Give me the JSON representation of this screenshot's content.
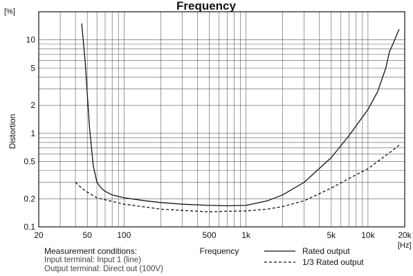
{
  "chart_data": {
    "type": "line",
    "title": "Frequency",
    "xlabel": "Frequency",
    "ylabel": "Distortion",
    "x_unit": "[Hz]",
    "y_unit": "[%]",
    "x_scale": "log",
    "y_scale": "log",
    "xlim": [
      20,
      20000
    ],
    "ylim": [
      0.1,
      20
    ],
    "grid": true,
    "legend_position": "bottom-right, below plot",
    "x_ticks": [
      {
        "value": 20,
        "label": "20"
      },
      {
        "value": 50,
        "label": "50"
      },
      {
        "value": 100,
        "label": "100"
      },
      {
        "value": 500,
        "label": "500"
      },
      {
        "value": 1000,
        "label": "1k"
      },
      {
        "value": 5000,
        "label": "5k"
      },
      {
        "value": 10000,
        "label": "10k"
      },
      {
        "value": 20000,
        "label": "20k"
      }
    ],
    "y_ticks": [
      {
        "value": 0.1,
        "label": "0.1"
      },
      {
        "value": 0.2,
        "label": "0.2"
      },
      {
        "value": 0.5,
        "label": "0.5"
      },
      {
        "value": 1,
        "label": "1"
      },
      {
        "value": 2,
        "label": "2"
      },
      {
        "value": 5,
        "label": "5"
      },
      {
        "value": 10,
        "label": "10"
      }
    ],
    "series": [
      {
        "name": "Rated output",
        "style": "solid",
        "x": [
          45,
          48,
          52,
          56,
          60,
          65,
          70,
          80,
          100,
          150,
          200,
          300,
          500,
          700,
          1000,
          1500,
          2000,
          3000,
          5000,
          7000,
          10000,
          12000,
          14000,
          15000,
          16000,
          18000
        ],
        "y": [
          15,
          6,
          1.2,
          0.45,
          0.3,
          0.26,
          0.24,
          0.22,
          0.205,
          0.19,
          0.182,
          0.175,
          0.17,
          0.168,
          0.17,
          0.19,
          0.22,
          0.3,
          0.55,
          0.95,
          1.8,
          2.8,
          5.0,
          7.5,
          9.0,
          13.0
        ]
      },
      {
        "name": "1/3 Rated output",
        "style": "dashed",
        "x": [
          40,
          45,
          50,
          60,
          70,
          100,
          150,
          200,
          300,
          500,
          700,
          1000,
          1500,
          2000,
          3000,
          5000,
          7000,
          10000,
          15000,
          18000
        ],
        "y": [
          0.3,
          0.26,
          0.235,
          0.205,
          0.195,
          0.175,
          0.163,
          0.155,
          0.15,
          0.145,
          0.147,
          0.148,
          0.155,
          0.165,
          0.19,
          0.26,
          0.33,
          0.42,
          0.62,
          0.75
        ]
      }
    ]
  },
  "conditions": {
    "heading": "Measurement conditions:",
    "lines": [
      "Input terminal: Input 1 (line)",
      "Output terminal: Direct out (100V)"
    ]
  },
  "colors": {
    "line": "#111111",
    "grid": "#555555",
    "background": "#ffffff"
  }
}
